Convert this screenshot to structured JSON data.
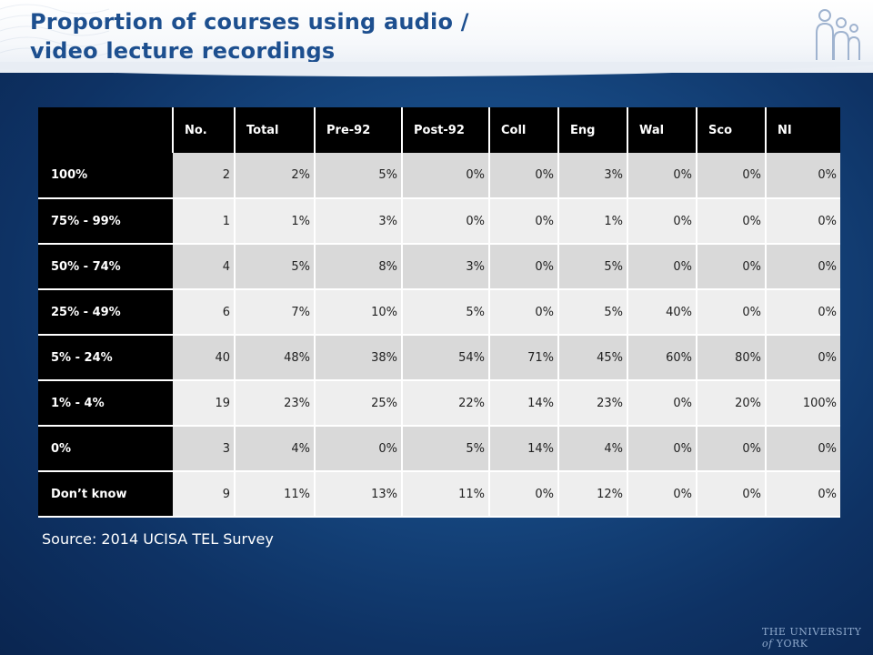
{
  "title": {
    "line1": "Proportion of courses using audio /",
    "line2": "video lecture recordings"
  },
  "table": {
    "headers": [
      "No.",
      "Total",
      "Pre-92",
      "Post-92",
      "Coll",
      "Eng",
      "Wal",
      "Sco",
      "NI"
    ],
    "rows": [
      {
        "label": "100%",
        "cells": [
          "2",
          "2%",
          "5%",
          "0%",
          "0%",
          "3%",
          "0%",
          "0%",
          "0%"
        ]
      },
      {
        "label": "75% - 99%",
        "cells": [
          "1",
          "1%",
          "3%",
          "0%",
          "0%",
          "1%",
          "0%",
          "0%",
          "0%"
        ]
      },
      {
        "label": "50% - 74%",
        "cells": [
          "4",
          "5%",
          "8%",
          "3%",
          "0%",
          "5%",
          "0%",
          "0%",
          "0%"
        ]
      },
      {
        "label": "25% - 49%",
        "cells": [
          "6",
          "7%",
          "10%",
          "5%",
          "0%",
          "5%",
          "40%",
          "0%",
          "0%"
        ]
      },
      {
        "label": "5% - 24%",
        "cells": [
          "40",
          "48%",
          "38%",
          "54%",
          "71%",
          "45%",
          "60%",
          "80%",
          "0%"
        ]
      },
      {
        "label": "1% - 4%",
        "cells": [
          "19",
          "23%",
          "25%",
          "22%",
          "14%",
          "23%",
          "0%",
          "20%",
          "100%"
        ]
      },
      {
        "label": "0%",
        "cells": [
          "3",
          "4%",
          "0%",
          "5%",
          "14%",
          "4%",
          "0%",
          "0%",
          "0%"
        ]
      },
      {
        "label": "Don’t know",
        "cells": [
          "9",
          "11%",
          "13%",
          "11%",
          "0%",
          "12%",
          "0%",
          "0%",
          "0%"
        ]
      }
    ]
  },
  "source": "Source: 2014 UCISA TEL Survey",
  "footer_logo": "The University of York",
  "colors": {
    "title": "#1d4f8f",
    "background": "#174a84",
    "header_cell": "#000000",
    "row_odd": "#d9d9d9",
    "row_even": "#eeeeee"
  },
  "icons": [
    "people-icon"
  ]
}
